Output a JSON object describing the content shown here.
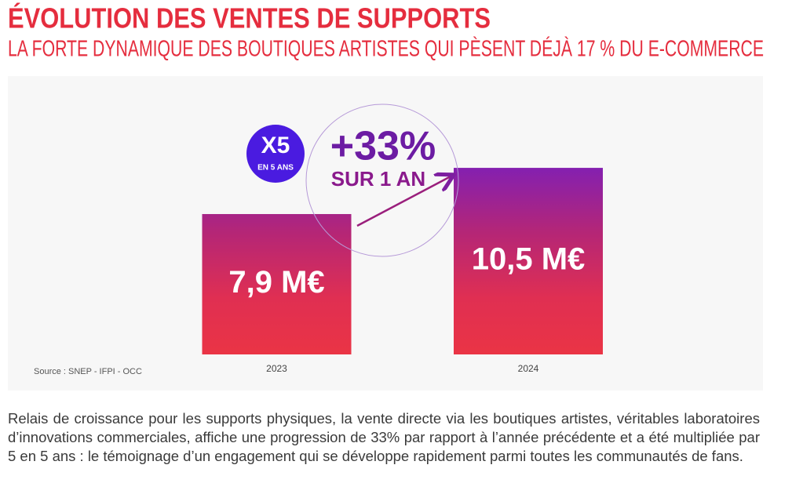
{
  "chart_data": {
    "type": "bar",
    "title": "ÉVOLUTION DES VENTES DE SUPPORTS",
    "subtitle": "LA FORTE DYNAMIQUE DES BOUTIQUES ARTISTES QUI PÈSENT DÉJÀ 17 % DU E-COMMERCE",
    "categories": [
      "2023",
      "2024"
    ],
    "values": [
      7.9,
      10.5
    ],
    "value_labels": [
      "7,9 M€",
      "10,5 M€"
    ],
    "annotations": {
      "multiplier": "X5",
      "multiplier_period": "EN 5 ANS",
      "growth": "+33%",
      "growth_period": "SUR 1 AN"
    },
    "source": "Source : SNEP - IFPI - OCC"
  },
  "paragraph": "Relais de croissance pour les supports physiques, la vente directe via les boutiques artistes, véritables laboratoires d’innovations commerciales, affiche une progression de 33% par rapport à l’année précédente et a été multipliée par 5 en 5 ans : le témoignage d’un engagement qui se développe rapidement parmi toutes les communautés de fans."
}
